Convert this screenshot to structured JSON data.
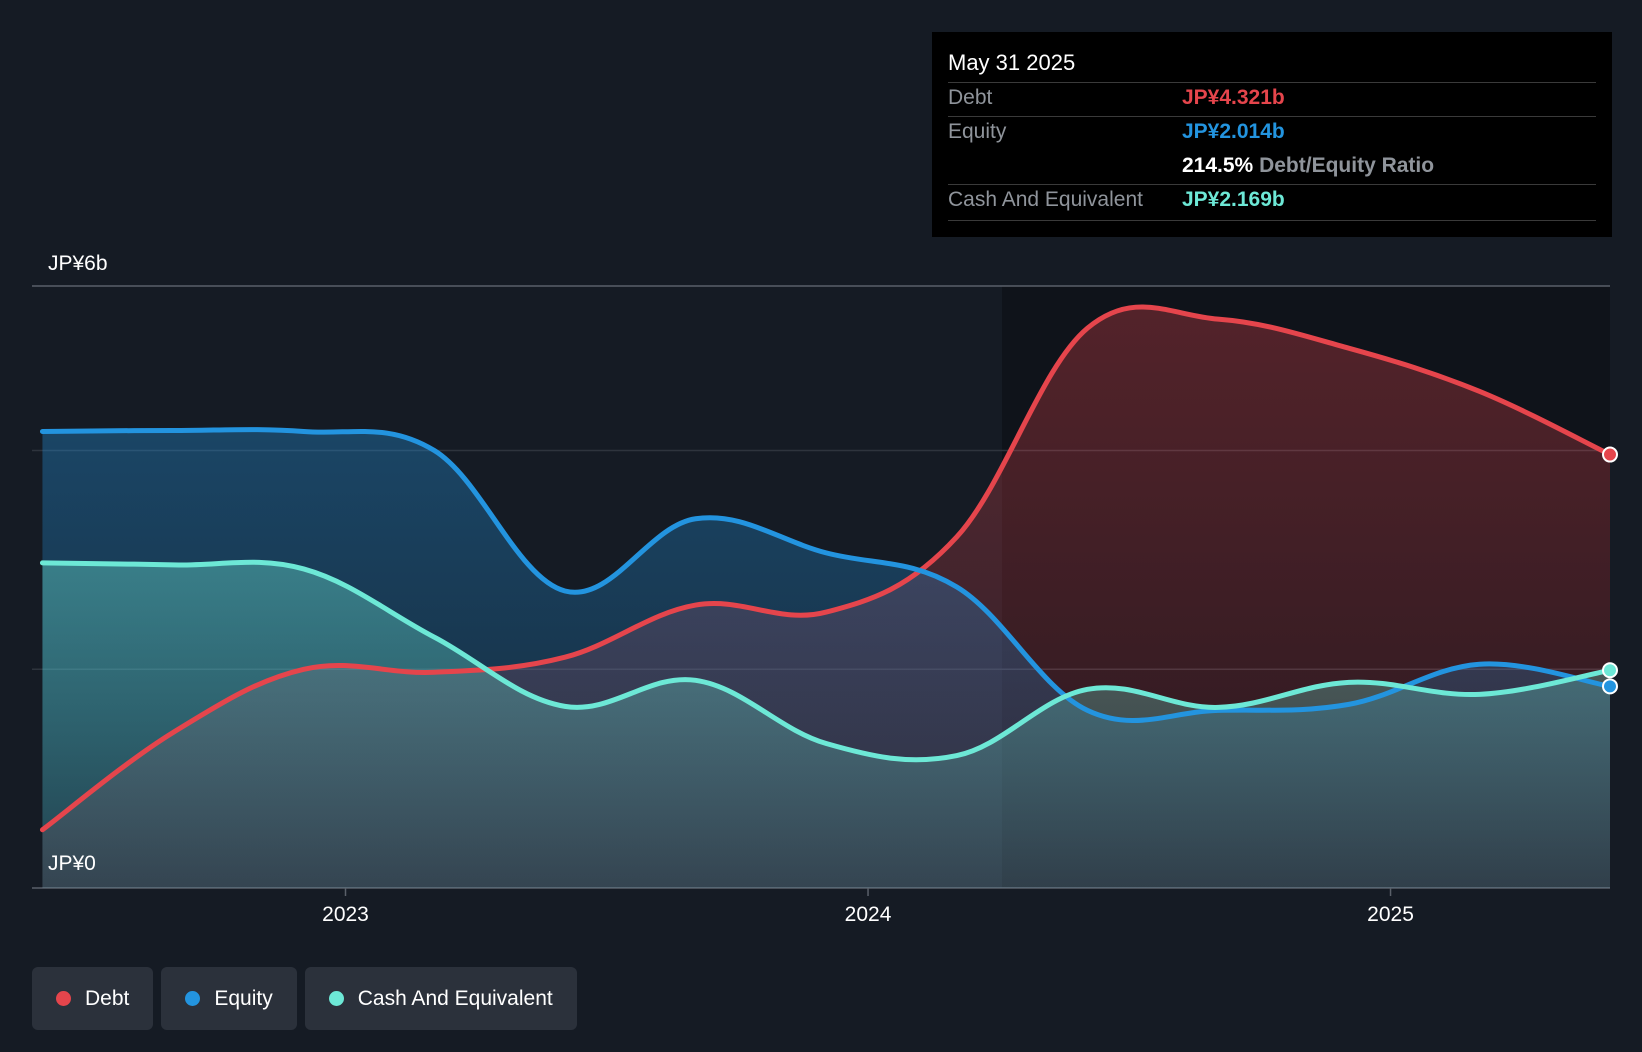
{
  "tooltip": {
    "date": "May 31 2025",
    "debt_label": "Debt",
    "debt_value": "JP¥4.321b",
    "equity_label": "Equity",
    "equity_value": "JP¥2.014b",
    "ratio_value": "214.5%",
    "ratio_label": "Debt/Equity Ratio",
    "cash_label": "Cash And Equivalent",
    "cash_value": "JP¥2.169b"
  },
  "legend": {
    "debt": "Debt",
    "equity": "Equity",
    "cash": "Cash And Equivalent"
  },
  "colors": {
    "debt": "#e5454c",
    "equity": "#2394df",
    "cash": "#6de8d6",
    "background": "#151b24"
  },
  "chart_data": {
    "type": "area",
    "y_top_label": "JP¥6b",
    "y_bottom_label": "JP¥0",
    "ylim": [
      0,
      6
    ],
    "xlim": [
      2022.4,
      2025.42
    ],
    "x_ticks": [
      {
        "value": 2023.0,
        "label": "2023"
      },
      {
        "value": 2024.0,
        "label": "2024"
      },
      {
        "value": 2025.0,
        "label": "2025"
      }
    ],
    "gridlines": [
      0,
      2.18,
      4.36,
      6
    ],
    "series": [
      {
        "name": "Debt",
        "x": [
          2022.42,
          2022.67,
          2022.92,
          2023.17,
          2023.42,
          2023.67,
          2023.92,
          2024.17,
          2024.42,
          2024.67,
          2024.92,
          2025.17,
          2025.42
        ],
        "values": [
          0.58,
          1.55,
          2.18,
          2.15,
          2.3,
          2.82,
          2.75,
          3.5,
          5.58,
          5.67,
          5.38,
          4.95,
          4.32
        ]
      },
      {
        "name": "Equity",
        "x": [
          2022.42,
          2022.67,
          2022.92,
          2023.17,
          2023.42,
          2023.67,
          2023.92,
          2024.17,
          2024.42,
          2024.67,
          2024.92,
          2025.17,
          2025.42
        ],
        "values": [
          4.55,
          4.56,
          4.55,
          4.36,
          2.96,
          3.68,
          3.34,
          3.0,
          1.77,
          1.77,
          1.83,
          2.23,
          2.01
        ]
      },
      {
        "name": "Cash And Equivalent",
        "x": [
          2022.42,
          2022.67,
          2022.92,
          2023.17,
          2023.42,
          2023.67,
          2023.92,
          2024.17,
          2024.42,
          2024.67,
          2024.92,
          2025.17,
          2025.42
        ],
        "values": [
          3.24,
          3.22,
          3.18,
          2.5,
          1.81,
          2.07,
          1.44,
          1.32,
          1.98,
          1.8,
          2.05,
          1.93,
          2.17
        ]
      }
    ]
  }
}
